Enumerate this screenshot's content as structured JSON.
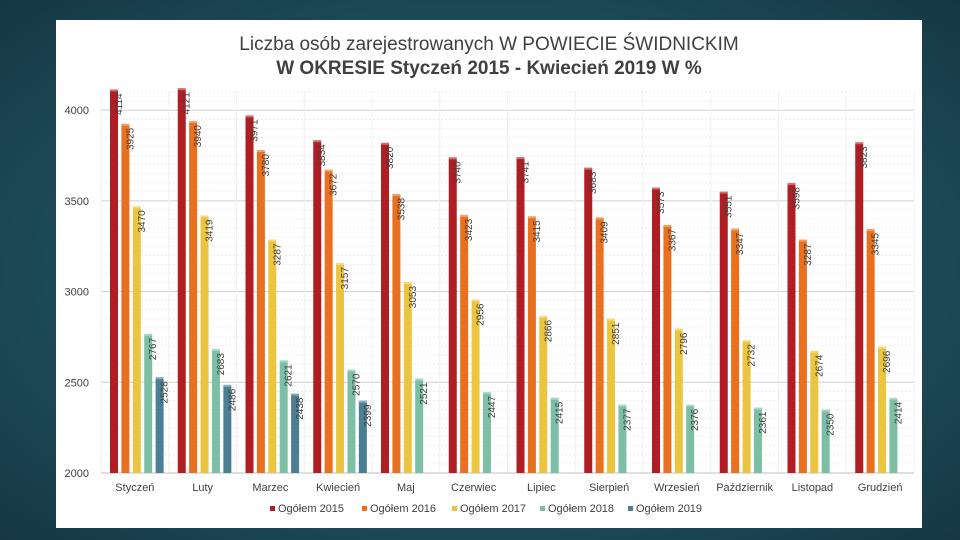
{
  "chart_data": {
    "type": "bar",
    "title": "Liczba osób zarejestrowanych W POWIECIE ŚWIDNICKIM",
    "subtitle": "W OKRESIE Styczeń 2015 - Kwiecień 2019 W %",
    "xlabel": "",
    "ylabel": "",
    "ylim": [
      2000,
      4100
    ],
    "yticks": [
      2000,
      2500,
      3000,
      3500,
      4000
    ],
    "legend_position": "bottom",
    "categories": [
      "Styczeń",
      "Luty",
      "Marzec",
      "Kwiecień",
      "Maj",
      "Czerwiec",
      "Lipiec",
      "Sierpień",
      "Wrzesień",
      "Październik",
      "Listopad",
      "Grudzień"
    ],
    "series": [
      {
        "name": "Ogółem 2015",
        "color": "#b01e24",
        "values": [
          4114,
          4121,
          3971,
          3834,
          3820,
          3740,
          3741,
          3683,
          3573,
          3551,
          3598,
          3823
        ]
      },
      {
        "name": "Ogółem 2016",
        "color": "#e8701f",
        "values": [
          3925,
          3940,
          3780,
          3672,
          3538,
          3423,
          3415,
          3409,
          3367,
          3347,
          3287,
          3345
        ]
      },
      {
        "name": "Ogółem 2017",
        "color": "#ebc53f",
        "values": [
          3470,
          3419,
          3287,
          3157,
          3053,
          2956,
          2866,
          2851,
          2796,
          2732,
          2674,
          2696
        ]
      },
      {
        "name": "Ogółem 2018",
        "color": "#7dbfa4",
        "values": [
          2767,
          2683,
          2621,
          2570,
          2521,
          2447,
          2415,
          2377,
          2376,
          2361,
          2350,
          2414
        ]
      },
      {
        "name": "Ogółem 2019",
        "color": "#4c7f94",
        "values": [
          2528,
          2486,
          2438,
          2399,
          null,
          null,
          null,
          null,
          null,
          null,
          null,
          null
        ]
      }
    ]
  }
}
